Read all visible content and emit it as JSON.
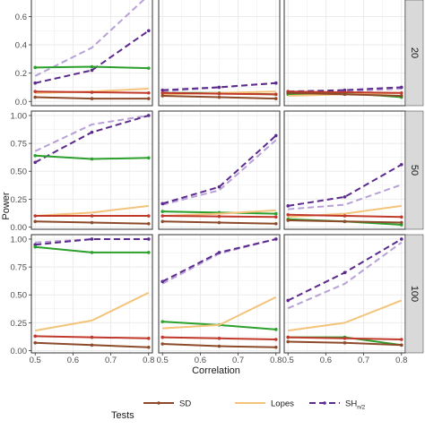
{
  "chart_data": {
    "type": "line",
    "layout": "facet-grid 3x3",
    "xlabel": "Correlation",
    "ylabel": "Power",
    "x": [
      0.5,
      0.65,
      0.8
    ],
    "x_ticks": [
      "0.5",
      "0.6",
      "0.7",
      "0.8"
    ],
    "x_tick_values": [
      0.5,
      0.6,
      0.7,
      0.8
    ],
    "xlim": [
      0.49,
      0.81
    ],
    "row_strip_labels": [
      "20",
      "50",
      "100"
    ],
    "row_y_ticks": [
      [
        "0.0",
        "0.2",
        "0.4",
        "0.6"
      ],
      [
        "0.00",
        "0.25",
        "0.50",
        "0.75",
        "1.00"
      ],
      [
        "0.00",
        "0.25",
        "0.50",
        "0.75",
        "1.00"
      ]
    ],
    "row_y_tick_values": [
      [
        0.0,
        0.2,
        0.4,
        0.6
      ],
      [
        0.0,
        0.25,
        0.5,
        0.75,
        1.0
      ],
      [
        0.0,
        0.25,
        0.5,
        0.75,
        1.0
      ]
    ],
    "row_ylim": [
      [
        -0.03,
        0.78
      ],
      [
        -0.02,
        1.04
      ],
      [
        -0.02,
        1.04
      ]
    ],
    "grid": true,
    "legend": {
      "position": "bottom",
      "title": "Tests",
      "entries": [
        {
          "label": "SD",
          "color": "#8c4a2a",
          "dash": "solid",
          "marker": true
        },
        {
          "label": "Lopes",
          "color": "#f4c37a",
          "dash": "solid",
          "marker": false
        },
        {
          "label": "SH",
          "subscript": "n/2",
          "color": "#5b2a8c",
          "dash": "dashed",
          "marker": true
        }
      ]
    },
    "colors": {
      "sd": "#8c4a2a",
      "red": "#c0392b",
      "lopes": "#f4c37a",
      "green": "#2ca02c",
      "sh_dark": "#5b2a8c",
      "sh_light": "#b7a1d6",
      "grid": "#ebebeb",
      "border": "#333333",
      "strip": "#d9d9d9"
    },
    "panels": [
      {
        "row": 0,
        "col": 0,
        "series": [
          {
            "key": "sh_light",
            "dash": "dashed",
            "marker": false,
            "values": [
              0.18,
              0.38,
              0.75
            ]
          },
          {
            "key": "sh_dark",
            "dash": "dashed",
            "marker": true,
            "values": [
              0.13,
              0.22,
              0.5
            ]
          },
          {
            "key": "green",
            "dash": "solid",
            "marker": true,
            "values": [
              0.24,
              0.245,
              0.235
            ]
          },
          {
            "key": "lopes",
            "dash": "solid",
            "marker": false,
            "values": [
              0.06,
              0.07,
              0.09
            ]
          },
          {
            "key": "red",
            "dash": "solid",
            "marker": true,
            "values": [
              0.07,
              0.065,
              0.06
            ]
          },
          {
            "key": "sd",
            "dash": "solid",
            "marker": true,
            "values": [
              0.03,
              0.02,
              0.02
            ]
          }
        ]
      },
      {
        "row": 0,
        "col": 1,
        "series": [
          {
            "key": "sh_light",
            "dash": "dashed",
            "marker": false,
            "values": [
              0.07,
              0.1,
              0.13
            ]
          },
          {
            "key": "sh_dark",
            "dash": "dashed",
            "marker": true,
            "values": [
              0.08,
              0.1,
              0.13
            ]
          },
          {
            "key": "green",
            "dash": "solid",
            "marker": true,
            "values": [
              0.06,
              0.06,
              0.05
            ]
          },
          {
            "key": "lopes",
            "dash": "solid",
            "marker": false,
            "values": [
              0.05,
              0.06,
              0.07
            ]
          },
          {
            "key": "red",
            "dash": "solid",
            "marker": true,
            "values": [
              0.06,
              0.055,
              0.05
            ]
          },
          {
            "key": "sd",
            "dash": "solid",
            "marker": true,
            "values": [
              0.04,
              0.03,
              0.02
            ]
          }
        ]
      },
      {
        "row": 0,
        "col": 2,
        "series": [
          {
            "key": "sh_light",
            "dash": "dashed",
            "marker": false,
            "values": [
              0.06,
              0.07,
              0.09
            ]
          },
          {
            "key": "sh_dark",
            "dash": "dashed",
            "marker": true,
            "values": [
              0.07,
              0.08,
              0.1
            ]
          },
          {
            "key": "green",
            "dash": "solid",
            "marker": true,
            "values": [
              0.05,
              0.06,
              0.03
            ]
          },
          {
            "key": "lopes",
            "dash": "solid",
            "marker": false,
            "values": [
              0.04,
              0.05,
              0.06
            ]
          },
          {
            "key": "red",
            "dash": "solid",
            "marker": true,
            "values": [
              0.07,
              0.065,
              0.06
            ]
          },
          {
            "key": "sd",
            "dash": "solid",
            "marker": true,
            "values": [
              0.06,
              0.05,
              0.04
            ]
          }
        ]
      },
      {
        "row": 1,
        "col": 0,
        "series": [
          {
            "key": "sh_light",
            "dash": "dashed",
            "marker": false,
            "values": [
              0.68,
              0.92,
              1.0
            ]
          },
          {
            "key": "sh_dark",
            "dash": "dashed",
            "marker": true,
            "values": [
              0.58,
              0.85,
              1.0
            ]
          },
          {
            "key": "green",
            "dash": "solid",
            "marker": true,
            "values": [
              0.64,
              0.61,
              0.62
            ]
          },
          {
            "key": "lopes",
            "dash": "solid",
            "marker": false,
            "values": [
              0.1,
              0.13,
              0.19
            ]
          },
          {
            "key": "red",
            "dash": "solid",
            "marker": true,
            "values": [
              0.1,
              0.1,
              0.1
            ]
          },
          {
            "key": "sd",
            "dash": "solid",
            "marker": true,
            "values": [
              0.05,
              0.04,
              0.03
            ]
          }
        ]
      },
      {
        "row": 1,
        "col": 1,
        "series": [
          {
            "key": "sh_light",
            "dash": "dashed",
            "marker": false,
            "values": [
              0.2,
              0.33,
              0.78
            ]
          },
          {
            "key": "sh_dark",
            "dash": "dashed",
            "marker": true,
            "values": [
              0.21,
              0.36,
              0.82
            ]
          },
          {
            "key": "green",
            "dash": "solid",
            "marker": true,
            "values": [
              0.14,
              0.13,
              0.12
            ]
          },
          {
            "key": "lopes",
            "dash": "solid",
            "marker": false,
            "values": [
              0.1,
              0.12,
              0.15
            ]
          },
          {
            "key": "red",
            "dash": "solid",
            "marker": true,
            "values": [
              0.1,
              0.095,
              0.09
            ]
          },
          {
            "key": "sd",
            "dash": "solid",
            "marker": true,
            "values": [
              0.05,
              0.04,
              0.03
            ]
          }
        ]
      },
      {
        "row": 1,
        "col": 2,
        "series": [
          {
            "key": "sh_light",
            "dash": "dashed",
            "marker": false,
            "values": [
              0.16,
              0.2,
              0.38
            ]
          },
          {
            "key": "sh_dark",
            "dash": "dashed",
            "marker": true,
            "values": [
              0.19,
              0.27,
              0.56
            ]
          },
          {
            "key": "green",
            "dash": "solid",
            "marker": true,
            "values": [
              0.07,
              0.05,
              0.02
            ]
          },
          {
            "key": "lopes",
            "dash": "solid",
            "marker": false,
            "values": [
              0.09,
              0.12,
              0.19
            ]
          },
          {
            "key": "red",
            "dash": "solid",
            "marker": true,
            "values": [
              0.11,
              0.1,
              0.09
            ]
          },
          {
            "key": "sd",
            "dash": "solid",
            "marker": true,
            "values": [
              0.06,
              0.05,
              0.04
            ]
          }
        ]
      },
      {
        "row": 2,
        "col": 0,
        "series": [
          {
            "key": "sh_light",
            "dash": "dashed",
            "marker": false,
            "values": [
              0.97,
              1.0,
              1.0
            ]
          },
          {
            "key": "sh_dark",
            "dash": "dashed",
            "marker": true,
            "values": [
              0.95,
              1.0,
              1.0
            ]
          },
          {
            "key": "green",
            "dash": "solid",
            "marker": true,
            "values": [
              0.93,
              0.88,
              0.88
            ]
          },
          {
            "key": "lopes",
            "dash": "solid",
            "marker": false,
            "values": [
              0.18,
              0.27,
              0.52
            ]
          },
          {
            "key": "red",
            "dash": "solid",
            "marker": true,
            "values": [
              0.13,
              0.12,
              0.11
            ]
          },
          {
            "key": "sd",
            "dash": "solid",
            "marker": true,
            "values": [
              0.07,
              0.05,
              0.03
            ]
          }
        ]
      },
      {
        "row": 2,
        "col": 1,
        "series": [
          {
            "key": "sh_light",
            "dash": "dashed",
            "marker": false,
            "values": [
              0.6,
              0.87,
              1.0
            ]
          },
          {
            "key": "sh_dark",
            "dash": "dashed",
            "marker": true,
            "values": [
              0.62,
              0.88,
              1.0
            ]
          },
          {
            "key": "green",
            "dash": "solid",
            "marker": true,
            "values": [
              0.26,
              0.23,
              0.19
            ]
          },
          {
            "key": "lopes",
            "dash": "solid",
            "marker": false,
            "values": [
              0.2,
              0.23,
              0.48
            ]
          },
          {
            "key": "red",
            "dash": "solid",
            "marker": true,
            "values": [
              0.12,
              0.11,
              0.1
            ]
          },
          {
            "key": "sd",
            "dash": "solid",
            "marker": true,
            "values": [
              0.06,
              0.04,
              0.03
            ]
          }
        ]
      },
      {
        "row": 2,
        "col": 2,
        "series": [
          {
            "key": "sh_light",
            "dash": "dashed",
            "marker": false,
            "values": [
              0.38,
              0.6,
              0.97
            ]
          },
          {
            "key": "sh_dark",
            "dash": "dashed",
            "marker": true,
            "values": [
              0.45,
              0.7,
              1.0
            ]
          },
          {
            "key": "green",
            "dash": "solid",
            "marker": true,
            "values": [
              0.12,
              0.12,
              0.05
            ]
          },
          {
            "key": "lopes",
            "dash": "solid",
            "marker": false,
            "values": [
              0.18,
              0.25,
              0.45
            ]
          },
          {
            "key": "red",
            "dash": "solid",
            "marker": true,
            "values": [
              0.12,
              0.11,
              0.1
            ]
          },
          {
            "key": "sd",
            "dash": "solid",
            "marker": true,
            "values": [
              0.08,
              0.07,
              0.05
            ]
          }
        ]
      }
    ]
  }
}
